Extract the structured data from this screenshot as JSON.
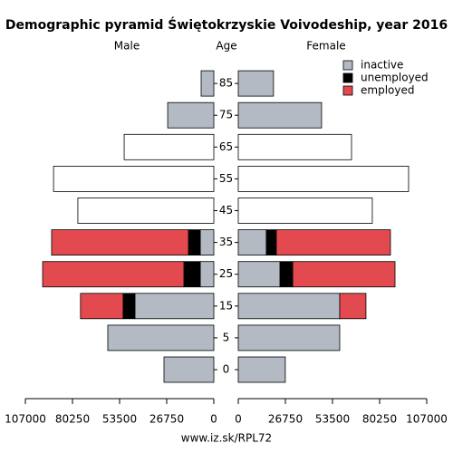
{
  "chart_data": {
    "type": "pyramid",
    "title": "Demographic pyramid Świętokrzyskie Voivodeship, year 2016",
    "left_label": "Male",
    "center_label": "Age",
    "right_label": "Female",
    "source": "www.iz.sk/RPL72",
    "categories": [
      "0",
      "5",
      "15",
      "25",
      "35",
      "45",
      "55",
      "65",
      "75",
      "85"
    ],
    "series": [
      {
        "name": "inactive",
        "color": "#b3bac4",
        "male_values": [
          28300,
          60200,
          44800,
          7700,
          7700,
          null,
          null,
          null,
          26200,
          7200
        ],
        "female_values": [
          26700,
          57600,
          57600,
          23700,
          15900,
          null,
          null,
          null,
          47300,
          20000
        ]
      },
      {
        "name": "unemployed",
        "color": "#000000",
        "male_values": [
          null,
          null,
          6700,
          9300,
          6700,
          null,
          null,
          null,
          null,
          null
        ],
        "female_values": [
          null,
          null,
          null,
          7200,
          5700,
          null,
          null,
          null,
          null,
          null
        ]
      },
      {
        "name": "employed",
        "color": "#e34a4f",
        "male_values": [
          null,
          null,
          24200,
          80200,
          77700,
          null,
          null,
          null,
          null,
          null
        ],
        "female_values": [
          null,
          null,
          14900,
          58100,
          64800,
          null,
          null,
          null,
          null,
          null
        ]
      }
    ],
    "unbroken": {
      "color": "#ffffff",
      "male_values": [
        null,
        null,
        null,
        null,
        null,
        77200,
        91000,
        50900,
        null,
        null
      ],
      "female_values": [
        null,
        null,
        null,
        null,
        null,
        76100,
        96700,
        64300,
        null,
        null
      ]
    },
    "xlim": [
      0,
      107000
    ],
    "xticks": [
      0,
      26750,
      53500,
      80250,
      107000
    ]
  }
}
